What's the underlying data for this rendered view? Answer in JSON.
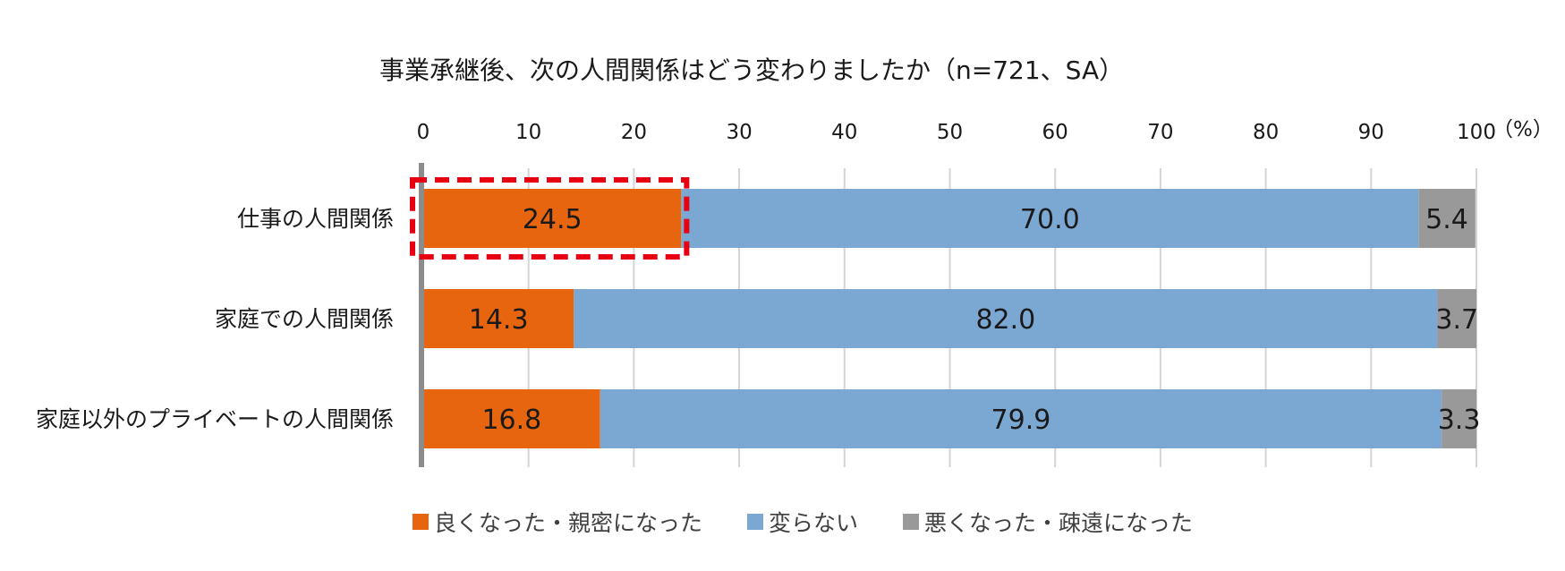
{
  "chart_data": {
    "type": "bar",
    "orientation": "horizontal",
    "stacked": true,
    "title": "事業承継後、次の人間関係はどう変わりましたか（n=721、SA）",
    "unit_label": "（%）",
    "xlim": [
      0,
      100
    ],
    "x_ticks": [
      "0",
      "10",
      "20",
      "30",
      "40",
      "50",
      "60",
      "70",
      "80",
      "90",
      "100"
    ],
    "grid": true,
    "legend_position": "bottom",
    "categories": [
      "仕事の人間関係",
      "家庭での人間関係",
      "家庭以外のプライベートの人間関係"
    ],
    "series": [
      {
        "name": "良くなった・親密になった",
        "color": "#E8650F",
        "values": [
          24.5,
          14.3,
          16.8
        ],
        "labels": [
          "24.5",
          "14.3",
          "16.8"
        ]
      },
      {
        "name": "変らない",
        "color": "#7BA7D3",
        "values": [
          70.0,
          82.0,
          79.9
        ],
        "labels": [
          "70.0",
          "82.0",
          "79.9"
        ]
      },
      {
        "name": "悪くなった・疎遠になった",
        "color": "#999999",
        "values": [
          5.4,
          3.7,
          3.3
        ],
        "labels": [
          "5.4",
          "3.7",
          "3.3"
        ]
      }
    ],
    "highlight": {
      "category_index": 0,
      "series_index": 0,
      "style": "red-dashed-box",
      "color": "#E60012"
    }
  }
}
